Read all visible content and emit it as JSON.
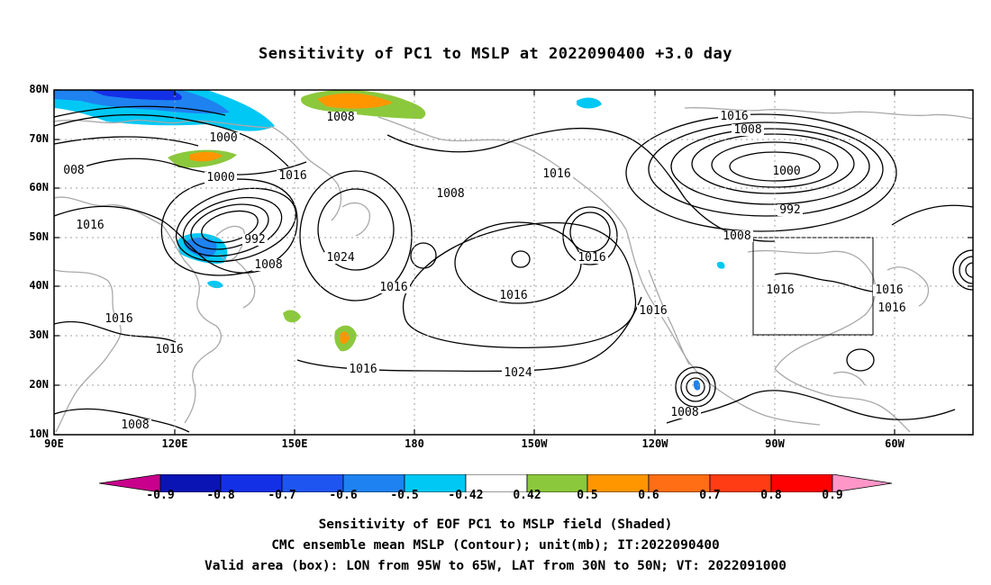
{
  "title": "Sensitivity of PC1 to MSLP at 2022090400 +3.0 day",
  "lat_labels": [
    "80N",
    "70N",
    "60N",
    "50N",
    "40N",
    "30N",
    "20N",
    "10N"
  ],
  "lon_labels": [
    "90E",
    "120E",
    "150E",
    "180",
    "150W",
    "120W",
    "90W",
    "60W"
  ],
  "contour_labels": [
    "1008",
    "1000",
    "1000",
    "992",
    "1008",
    "1016",
    "1016",
    "1008",
    "1016",
    "1016",
    "1024",
    "1016",
    "1024",
    "1016",
    "1016",
    "1016",
    "1016",
    "1008",
    "1000",
    "992",
    "1008",
    "1016",
    "1016",
    "1016",
    "1008",
    "1016",
    "1008",
    "008",
    "1016"
  ],
  "colorbar": {
    "labels": [
      "-0.9",
      "-0.8",
      "-0.7",
      "-0.6",
      "-0.5",
      "-0.42",
      "0.42",
      "0.5",
      "0.6",
      "0.7",
      "0.8",
      "0.9"
    ],
    "colors": [
      "#c8008c",
      "#0a14b4",
      "#1430e6",
      "#1e55f0",
      "#1e82f0",
      "#00c8f5",
      "#ffffff",
      "#8cc83c",
      "#ff9600",
      "#ff6e14",
      "#ff3c14",
      "#ff0000",
      "#ff96c8"
    ]
  },
  "box": {
    "lon_from": "95W",
    "lon_to": "65W",
    "lat_from": "30N",
    "lat_to": "50N"
  },
  "caption": {
    "line1": "Sensitivity of EOF PC1 to MSLP field (Shaded)",
    "line2": "CMC ensemble mean MSLP (Contour); unit(mb); IT:2022090400",
    "line3": "Valid area (box): LON from 95W to 65W, LAT from 30N to 50N; VT: 2022091000"
  }
}
